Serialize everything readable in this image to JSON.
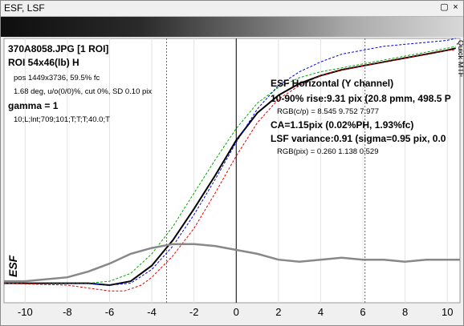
{
  "window": {
    "title": "ESF, LSF",
    "restore_label": "▢",
    "close_label": "×"
  },
  "info": {
    "line1": "370A8058.JPG [1 ROI]",
    "line2": "ROI 54x46(lb) H",
    "line3": "pos 1449x3736, 59.5% fc",
    "line4": "1.68 deg, u/o(0/0)%, cut 0%, SD 0.10 pix",
    "line5": "gamma = 1",
    "line6": "10;L;lnt;709;101;T;T;T;40.0;T"
  },
  "results": {
    "heading": "ESF Horizontal (Y channel)",
    "rise": "10-90% rise:9.31 pix (20.8 pmm, 498.5 P",
    "rgb_cp": "RGB(c/p) = 8.545 9.752 7.977",
    "ca": "CA=1.15pix (0.02%PH, 1.93%fc)",
    "lsf": "LSF variance:0.91 (sigma=0.95 pix, 0.0",
    "rgb_pix": "RGB(pix) = 0.260 1.138 0.529"
  },
  "side_label": "Quick MTF",
  "chart_data": {
    "type": "line",
    "ylabel": "ESF",
    "xlim": [
      -11,
      10.6
    ],
    "xticks": [
      -10,
      -8,
      -6,
      -4,
      -2,
      0,
      2,
      4,
      6,
      8,
      10
    ],
    "ylim": [
      -0.1,
      1.25
    ],
    "vlines": [
      -3.3,
      6.1
    ],
    "grid": true,
    "series": [
      {
        "color": "#000000",
        "points": [
          [
            -11,
            0.0
          ],
          [
            -7,
            0.0
          ],
          [
            -6,
            -0.01
          ],
          [
            -5,
            0.01
          ],
          [
            -4,
            0.09
          ],
          [
            -3,
            0.22
          ],
          [
            -2,
            0.38
          ],
          [
            -1,
            0.55
          ],
          [
            0,
            0.73
          ],
          [
            1,
            0.87
          ],
          [
            2,
            0.96
          ],
          [
            3,
            1.02
          ],
          [
            4,
            1.06
          ],
          [
            5,
            1.09
          ],
          [
            6,
            1.11
          ],
          [
            7,
            1.13
          ],
          [
            8,
            1.15
          ],
          [
            9,
            1.17
          ],
          [
            10,
            1.19
          ],
          [
            10.4,
            1.2
          ]
        ]
      },
      {
        "color": "#00aa00",
        "points": [
          [
            -11,
            0.0
          ],
          [
            -7,
            0.0
          ],
          [
            -6,
            0.01
          ],
          [
            -5,
            0.05
          ],
          [
            -4,
            0.15
          ],
          [
            -3,
            0.29
          ],
          [
            -2,
            0.46
          ],
          [
            -1,
            0.63
          ],
          [
            0,
            0.79
          ],
          [
            1,
            0.92
          ],
          [
            2,
            1.0
          ],
          [
            3,
            1.05
          ],
          [
            4,
            1.08
          ],
          [
            5,
            1.1
          ],
          [
            6,
            1.12
          ],
          [
            7,
            1.14
          ],
          [
            8,
            1.16
          ],
          [
            9,
            1.18
          ],
          [
            10,
            1.2
          ],
          [
            10.4,
            1.21
          ]
        ]
      },
      {
        "color": "#0000e0",
        "points": [
          [
            -11,
            0.0
          ],
          [
            -7,
            0.0
          ],
          [
            -6,
            -0.01
          ],
          [
            -5,
            0.0
          ],
          [
            -4,
            0.07
          ],
          [
            -3,
            0.19
          ],
          [
            -2,
            0.35
          ],
          [
            -1,
            0.53
          ],
          [
            0,
            0.72
          ],
          [
            1,
            0.89
          ],
          [
            2,
            1.01
          ],
          [
            3,
            1.08
          ],
          [
            4,
            1.13
          ],
          [
            5,
            1.17
          ],
          [
            6,
            1.19
          ],
          [
            7,
            1.21
          ],
          [
            8,
            1.22
          ],
          [
            9,
            1.23
          ],
          [
            10,
            1.24
          ],
          [
            10.4,
            1.25
          ]
        ]
      },
      {
        "color": "#e00000",
        "points": [
          [
            -11,
            0.0
          ],
          [
            -8,
            -0.01
          ],
          [
            -6,
            -0.04
          ],
          [
            -5.3,
            -0.04
          ],
          [
            -4.5,
            -0.01
          ],
          [
            -4,
            0.03
          ],
          [
            -3,
            0.14
          ],
          [
            -2,
            0.28
          ],
          [
            -1,
            0.46
          ],
          [
            0,
            0.65
          ],
          [
            1,
            0.82
          ],
          [
            2,
            0.94
          ],
          [
            3,
            1.01
          ],
          [
            4,
            1.06
          ],
          [
            5,
            1.09
          ],
          [
            6,
            1.11
          ],
          [
            7,
            1.13
          ],
          [
            8,
            1.15
          ],
          [
            9,
            1.17
          ],
          [
            10,
            1.19
          ],
          [
            10.4,
            1.19
          ]
        ]
      },
      {
        "color": "#888888",
        "points": [
          [
            -11,
            0.01
          ],
          [
            -10,
            0.01
          ],
          [
            -8,
            0.03
          ],
          [
            -7,
            0.06
          ],
          [
            -6,
            0.1
          ],
          [
            -5,
            0.15
          ],
          [
            -4,
            0.18
          ],
          [
            -3,
            0.2
          ],
          [
            -2,
            0.2
          ],
          [
            -1,
            0.19
          ],
          [
            0,
            0.17
          ],
          [
            1,
            0.15
          ],
          [
            2,
            0.12
          ],
          [
            3,
            0.11
          ],
          [
            4,
            0.12
          ],
          [
            5,
            0.13
          ],
          [
            6,
            0.12
          ],
          [
            7,
            0.12
          ],
          [
            8,
            0.11
          ],
          [
            9,
            0.12
          ],
          [
            10,
            0.12
          ],
          [
            10.6,
            0.12
          ]
        ]
      }
    ]
  }
}
